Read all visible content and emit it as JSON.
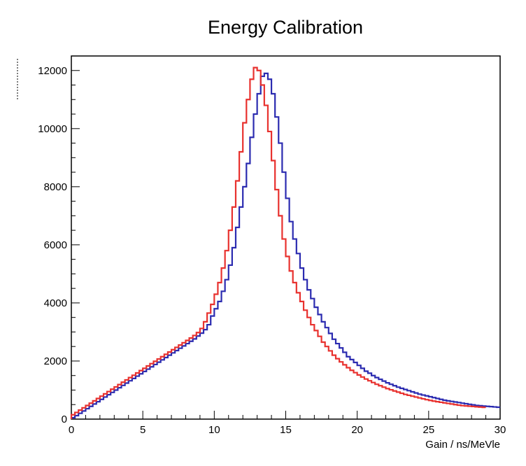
{
  "chart_data": {
    "type": "line",
    "title": "Energy Calibration",
    "xlabel": "Gain / ns/MeVle",
    "ylabel": "",
    "xlim": [
      0,
      30
    ],
    "ylim": [
      0,
      12500
    ],
    "grid": false,
    "x_ticks": [
      "0",
      "5",
      "10",
      "15",
      "20",
      "25",
      "30"
    ],
    "y_ticks": [
      "0",
      "2000",
      "4000",
      "6000",
      "8000",
      "10000",
      "12000"
    ],
    "x_tick_values": [
      0,
      5,
      10,
      15,
      20,
      25,
      30
    ],
    "y_tick_values": [
      0,
      2000,
      4000,
      6000,
      8000,
      10000,
      12000
    ],
    "bin_width": 0.25,
    "series": [
      {
        "color": "#2b2bb0",
        "values": [
          50,
          120,
          200,
          280,
          360,
          440,
          520,
          600,
          680,
          760,
          840,
          920,
          1000,
          1080,
          1160,
          1240,
          1320,
          1400,
          1480,
          1560,
          1640,
          1720,
          1800,
          1880,
          1960,
          2040,
          2120,
          2200,
          2280,
          2360,
          2440,
          2520,
          2600,
          2680,
          2760,
          2860,
          2960,
          3080,
          3250,
          3550,
          3800,
          4050,
          4400,
          4800,
          5300,
          5900,
          6600,
          7300,
          8000,
          8800,
          9700,
          10500,
          11200,
          11800,
          11900,
          11700,
          11200,
          10400,
          9500,
          8500,
          7600,
          6800,
          6200,
          5700,
          5200,
          4800,
          4450,
          4150,
          3850,
          3600,
          3350,
          3150,
          2950,
          2750,
          2600,
          2450,
          2300,
          2150,
          2050,
          1950,
          1850,
          1750,
          1650,
          1580,
          1500,
          1430,
          1370,
          1310,
          1250,
          1200,
          1150,
          1100,
          1060,
          1020,
          980,
          940,
          900,
          860,
          830,
          800,
          770,
          740,
          710,
          680,
          650,
          630,
          610,
          590,
          570,
          550,
          530,
          510,
          490,
          470,
          460,
          450,
          440,
          430,
          420,
          410
        ]
      },
      {
        "color": "#e8312e",
        "values": [
          150,
          230,
          310,
          390,
          470,
          550,
          630,
          710,
          790,
          870,
          950,
          1030,
          1110,
          1190,
          1270,
          1350,
          1430,
          1510,
          1590,
          1670,
          1750,
          1830,
          1910,
          1990,
          2070,
          2150,
          2230,
          2310,
          2390,
          2470,
          2550,
          2630,
          2710,
          2790,
          2880,
          2980,
          3120,
          3350,
          3650,
          3950,
          4300,
          4700,
          5200,
          5800,
          6500,
          7300,
          8200,
          9200,
          10200,
          11000,
          11700,
          12100,
          12000,
          11500,
          10800,
          9900,
          8900,
          7900,
          7000,
          6200,
          5600,
          5100,
          4700,
          4350,
          4050,
          3750,
          3500,
          3250,
          3050,
          2850,
          2650,
          2500,
          2350,
          2200,
          2080,
          1970,
          1870,
          1770,
          1680,
          1600,
          1520,
          1450,
          1380,
          1320,
          1260,
          1200,
          1150,
          1100,
          1050,
          1010,
          970,
          930,
          890,
          850,
          820,
          790,
          760,
          730,
          700,
          670,
          645,
          620,
          600,
          580,
          560,
          540,
          520,
          500,
          480,
          465,
          455,
          445,
          435,
          425,
          415,
          405
        ]
      }
    ]
  }
}
